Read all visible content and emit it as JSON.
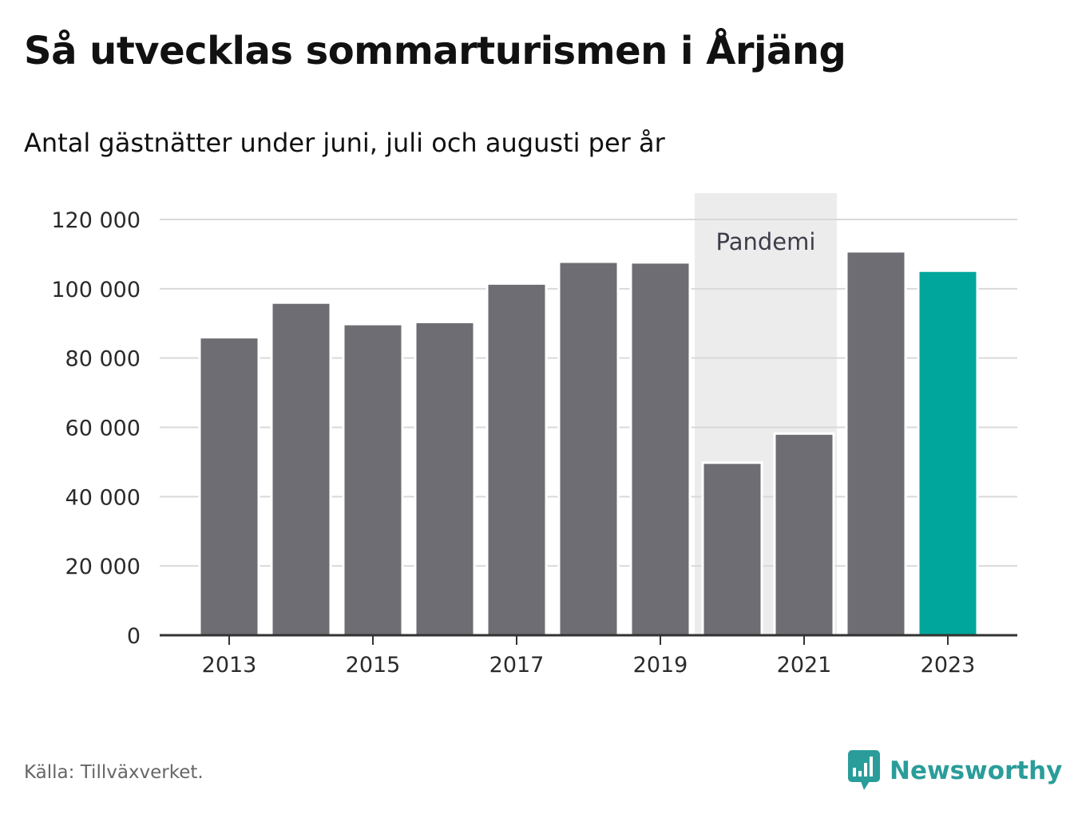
{
  "title": "Så utvecklas sommarturismen i Årjäng",
  "subtitle": "Antal gästnätter under juni, juli och augusti per år",
  "source": "Källa: Tillväxverket.",
  "brand": {
    "name": "Newsworthy",
    "icon": "newsworthy-bar-chart-bubble-icon",
    "color": "#2a9d9a"
  },
  "colors": {
    "bar": "#6e6d73",
    "highlight": "#00a69b",
    "shade": "#ececec",
    "grid": "#d9d9d9",
    "axis": "#333333"
  },
  "chart_data": {
    "type": "bar",
    "categories": [
      "2013",
      "2014",
      "2015",
      "2016",
      "2017",
      "2018",
      "2019",
      "2020",
      "2021",
      "2022",
      "2023"
    ],
    "values": [
      86000,
      96000,
      89800,
      90400,
      101500,
      107800,
      107600,
      49800,
      58200,
      110800,
      105200
    ],
    "highlight_category": "2023",
    "x_tick_labels": [
      "2013",
      "2015",
      "2017",
      "2019",
      "2021",
      "2023"
    ],
    "y_ticks": [
      0,
      20000,
      40000,
      60000,
      80000,
      100000,
      120000
    ],
    "y_tick_labels": [
      "0",
      "20 000",
      "40 000",
      "60 000",
      "80 000",
      "100 000",
      "120 000"
    ],
    "ylim": [
      0,
      120000
    ],
    "grid": true,
    "annotation": {
      "label": "Pandemi",
      "from": "2020",
      "to": "2021"
    }
  }
}
